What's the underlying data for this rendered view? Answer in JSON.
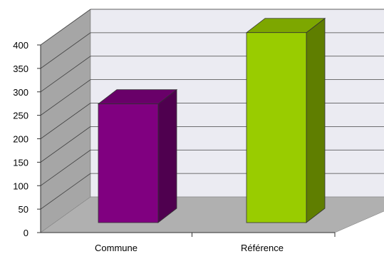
{
  "chart_data": {
    "type": "bar",
    "categories": [
      "Commune",
      "Référence"
    ],
    "values": [
      253,
      405
    ],
    "ylim": [
      0,
      400
    ],
    "yticks": [
      0,
      50,
      100,
      150,
      200,
      250,
      300,
      350,
      400
    ],
    "grid": true,
    "style": "3d",
    "colors": {
      "bars": [
        "#800080",
        "#99cc00"
      ],
      "walls": "#ebebf2",
      "side_wall": "#a6a6a6",
      "floor": "#b0b0b0"
    }
  }
}
